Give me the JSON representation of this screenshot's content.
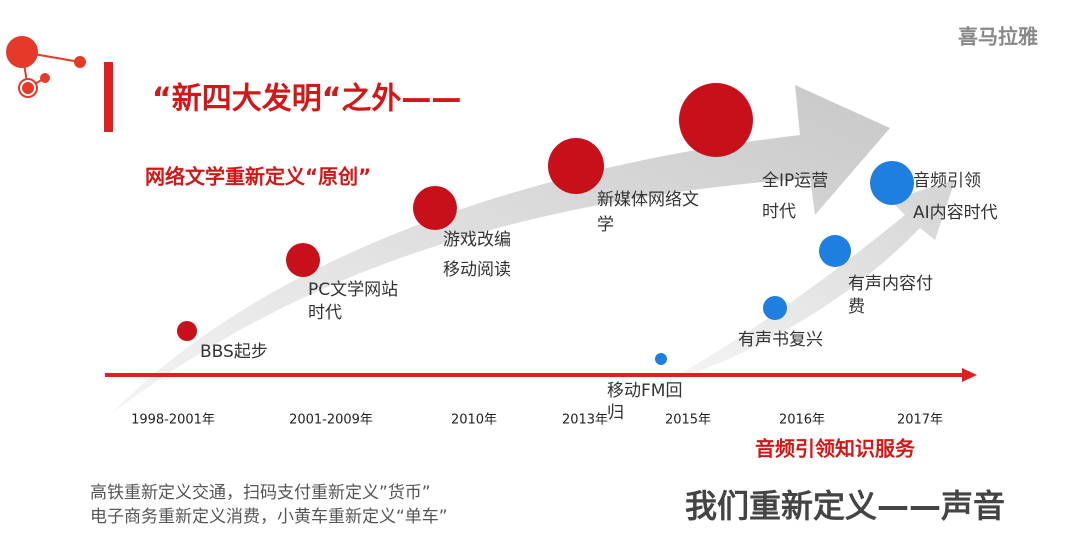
{
  "logo": "喜马拉雅",
  "header": {
    "title": "“新四大发明“之外——",
    "subtitle": "网络文学重新定义“原创”"
  },
  "milestones": [
    {
      "lines": [
        "BBS起步"
      ]
    },
    {
      "lines": [
        "PC文学网站",
        "时代"
      ]
    },
    {
      "lines": [
        "游戏改编",
        "移动阅读"
      ]
    },
    {
      "lines": [
        "新媒体网络文",
        "学"
      ]
    },
    {
      "lines": [
        "全IP运营",
        "时代"
      ]
    },
    {
      "lines": [
        "移动FM回",
        "归"
      ]
    },
    {
      "lines": [
        "有声书复兴"
      ]
    },
    {
      "lines": [
        "有声内容付",
        "费"
      ]
    },
    {
      "lines": [
        "音频引领",
        "AI内容时代"
      ]
    }
  ],
  "years": [
    "1998-2001年",
    "2001-2009年",
    "2010年",
    "2013年",
    "2015年",
    "2016年",
    "2017年"
  ],
  "highlight": "音频引领知识服务",
  "footer": {
    "left_lines": [
      "高铁重新定义交通，扫码支付重新定义”货币”",
      "电子商务重新定义消费，小黄车重新定义“单车”"
    ],
    "right": "我们重新定义——声音"
  }
}
